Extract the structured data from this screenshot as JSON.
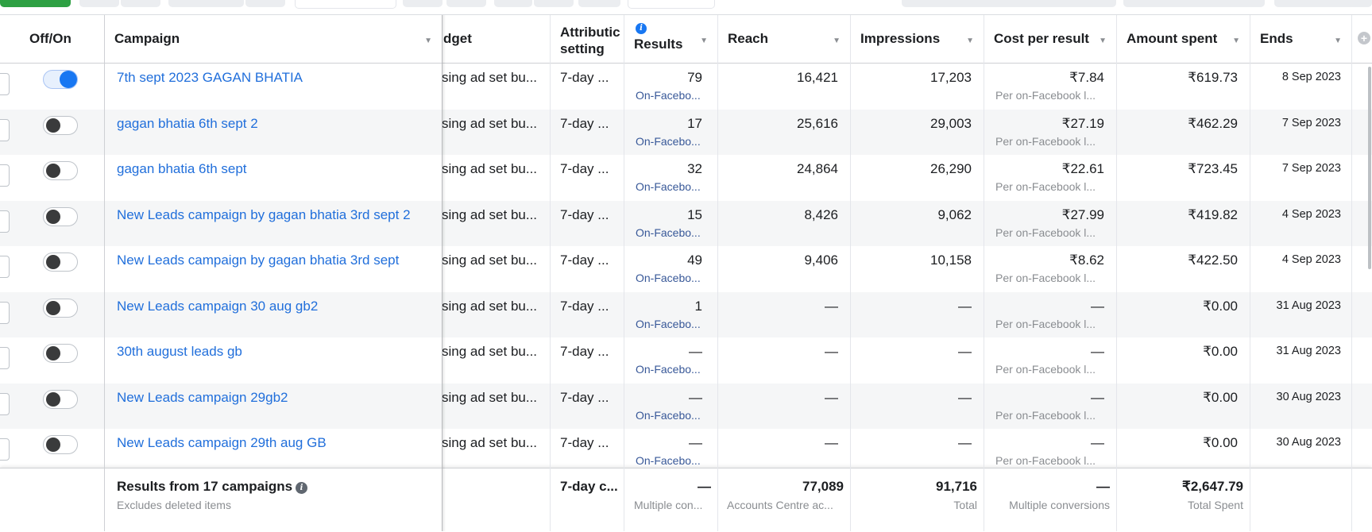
{
  "header": {
    "off_on": "Off/On",
    "campaign": "Campaign",
    "budget": "dget",
    "attribution": [
      "Attributic",
      "setting"
    ],
    "results": "Results",
    "reach": "Reach",
    "impressions": "Impressions",
    "cost_per_result": "Cost per result",
    "amount_spent": "Amount spent",
    "ends": "Ends"
  },
  "rows": [
    {
      "on": true,
      "campaign": "7th sept 2023 GAGAN BHATIA",
      "budget": "sing ad set bu...",
      "attribution": "7-day ...",
      "results": "79",
      "results_sub": "On-Facebo...",
      "reach": "16,421",
      "impressions": "17,203",
      "cpr": "₹7.84",
      "cpr_sub": "Per on-Facebook l...",
      "spent": "₹619.73",
      "ends": "8 Sep 2023"
    },
    {
      "on": false,
      "campaign": "gagan bhatia 6th sept 2",
      "budget": "sing ad set bu...",
      "attribution": "7-day ...",
      "results": "17",
      "results_sub": "On-Facebo...",
      "reach": "25,616",
      "impressions": "29,003",
      "cpr": "₹27.19",
      "cpr_sub": "Per on-Facebook l...",
      "spent": "₹462.29",
      "ends": "7 Sep 2023"
    },
    {
      "on": false,
      "campaign": "gagan bhatia 6th sept",
      "budget": "sing ad set bu...",
      "attribution": "7-day ...",
      "results": "32",
      "results_sub": "On-Facebo...",
      "reach": "24,864",
      "impressions": "26,290",
      "cpr": "₹22.61",
      "cpr_sub": "Per on-Facebook l...",
      "spent": "₹723.45",
      "ends": "7 Sep 2023"
    },
    {
      "on": false,
      "campaign": "New Leads campaign by gagan bhatia 3rd sept 2",
      "budget": "sing ad set bu...",
      "attribution": "7-day ...",
      "results": "15",
      "results_sub": "On-Facebo...",
      "reach": "8,426",
      "impressions": "9,062",
      "cpr": "₹27.99",
      "cpr_sub": "Per on-Facebook l...",
      "spent": "₹419.82",
      "ends": "4 Sep 2023"
    },
    {
      "on": false,
      "campaign": "New Leads campaign by gagan bhatia 3rd sept",
      "budget": "sing ad set bu...",
      "attribution": "7-day ...",
      "results": "49",
      "results_sub": "On-Facebo...",
      "reach": "9,406",
      "impressions": "10,158",
      "cpr": "₹8.62",
      "cpr_sub": "Per on-Facebook l...",
      "spent": "₹422.50",
      "ends": "4 Sep 2023"
    },
    {
      "on": false,
      "campaign": "New Leads campaign 30 aug gb2",
      "budget": "sing ad set bu...",
      "attribution": "7-day ...",
      "results": "1",
      "results_sub": "On-Facebo...",
      "reach": "—",
      "impressions": "—",
      "cpr": "—",
      "cpr_sub": "Per on-Facebook l...",
      "spent": "₹0.00",
      "ends": "31 Aug 2023"
    },
    {
      "on": false,
      "campaign": "30th august leads gb",
      "budget": "sing ad set bu...",
      "attribution": "7-day ...",
      "results": "—",
      "results_sub": "On-Facebo...",
      "reach": "—",
      "impressions": "—",
      "cpr": "—",
      "cpr_sub": "Per on-Facebook l...",
      "spent": "₹0.00",
      "ends": "31 Aug 2023"
    },
    {
      "on": false,
      "campaign": "New Leads campaign 29gb2",
      "budget": "sing ad set bu...",
      "attribution": "7-day ...",
      "results": "—",
      "results_sub": "On-Facebo...",
      "reach": "—",
      "impressions": "—",
      "cpr": "—",
      "cpr_sub": "Per on-Facebook l...",
      "spent": "₹0.00",
      "ends": "30 Aug 2023"
    },
    {
      "on": false,
      "campaign": "New Leads campaign 29th aug GB",
      "budget": "sing ad set bu...",
      "attribution": "7-day ...",
      "results": "—",
      "results_sub": "On-Facebo...",
      "reach": "—",
      "impressions": "—",
      "cpr": "—",
      "cpr_sub": "Per on-Facebook l...",
      "spent": "₹0.00",
      "ends": "30 Aug 2023"
    }
  ],
  "footer": {
    "title": "Results from 17 campaigns",
    "subtitle": "Excludes deleted items",
    "attribution": "7-day c...",
    "results": "—",
    "results_sub": "Multiple con...",
    "reach": "77,089",
    "reach_sub": "Accounts Centre ac...",
    "impressions": "91,716",
    "impressions_sub": "Total",
    "cpr": "—",
    "cpr_sub": "Multiple conversions",
    "spent": "₹2,647.79",
    "spent_sub": "Total Spent"
  },
  "colors": {
    "link": "#216fdb",
    "toggle_on": "#1877f2",
    "alt_row": "#f5f6f7"
  }
}
